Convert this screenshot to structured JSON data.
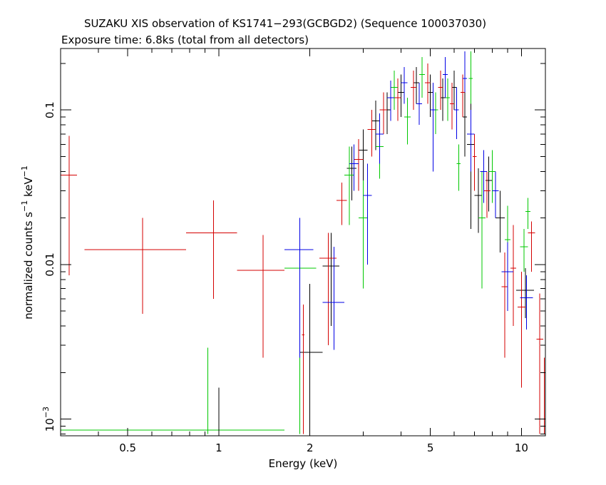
{
  "chart_data": {
    "type": "scatter",
    "title": "SUZAKU XIS observation of KS1741−293(GCBGD2) (Sequence 100037030)",
    "subtitle": "Exposure time: 6.8ks (total from all detectors)",
    "xlabel": "Energy (keV)",
    "ylabel_parts": {
      "base": "normalized counts s",
      "sup1": "−1",
      "mid": " keV",
      "sup2": "−1"
    },
    "xscale": "log",
    "yscale": "log",
    "xlim": [
      0.3,
      12.0
    ],
    "ylim": [
      0.00078,
      0.25
    ],
    "x_ticks": [
      {
        "value": 0.5,
        "label": "0.5"
      },
      {
        "value": 1,
        "label": "1"
      },
      {
        "value": 2,
        "label": "2"
      },
      {
        "value": 5,
        "label": "5"
      },
      {
        "value": 10,
        "label": "10"
      }
    ],
    "y_ticks": [
      {
        "value": 0.1,
        "label": "0.1"
      },
      {
        "value": 0.01,
        "label": "0.01"
      },
      {
        "value": 0.001,
        "label_base": "10",
        "label_sup": "−3"
      }
    ],
    "series": [
      {
        "color": "#000000",
        "points": [
          {
            "x": 2.0,
            "xerr": [
              1.85,
              2.2
            ],
            "y": 0.0027,
            "yerr": [
              0.0008,
              0.0075
            ]
          },
          {
            "x": 2.35,
            "xerr": [
              2.2,
              2.5
            ],
            "y": 0.0098,
            "yerr": [
              0.004,
              0.016
            ]
          },
          {
            "x": 2.75,
            "xerr": [
              2.65,
              2.85
            ],
            "y": 0.042,
            "yerr": [
              0.026,
              0.058
            ]
          },
          {
            "x": 3.0,
            "xerr": [
              2.9,
              3.1
            ],
            "y": 0.055,
            "yerr": [
              0.032,
              0.075
            ]
          },
          {
            "x": 3.3,
            "xerr": [
              3.2,
              3.4
            ],
            "y": 0.085,
            "yerr": [
              0.055,
              0.115
            ]
          },
          {
            "x": 3.6,
            "xerr": [
              3.5,
              3.7
            ],
            "y": 0.1,
            "yerr": [
              0.07,
              0.13
            ]
          },
          {
            "x": 4.0,
            "xerr": [
              3.9,
              4.1
            ],
            "y": 0.13,
            "yerr": [
              0.09,
              0.17
            ]
          },
          {
            "x": 4.5,
            "xerr": [
              4.4,
              4.6
            ],
            "y": 0.15,
            "yerr": [
              0.11,
              0.19
            ]
          },
          {
            "x": 5.0,
            "xerr": [
              4.9,
              5.1
            ],
            "y": 0.13,
            "yerr": [
              0.09,
              0.17
            ]
          },
          {
            "x": 5.5,
            "xerr": [
              5.4,
              5.6
            ],
            "y": 0.12,
            "yerr": [
              0.085,
              0.16
            ]
          },
          {
            "x": 6.0,
            "xerr": [
              5.9,
              6.1
            ],
            "y": 0.14,
            "yerr": [
              0.1,
              0.18
            ]
          },
          {
            "x": 6.5,
            "xerr": [
              6.4,
              6.6
            ],
            "y": 0.09,
            "yerr": [
              0.05,
              0.13
            ]
          },
          {
            "x": 7.2,
            "xerr": [
              7.0,
              7.4
            ],
            "y": 0.028,
            "yerr": [
              0.016,
              0.042
            ]
          },
          {
            "x": 8.5,
            "xerr": [
              8.2,
              8.8
            ],
            "y": 0.02,
            "yerr": [
              0.012,
              0.03
            ]
          },
          {
            "x": 10.3,
            "xerr": [
              9.6,
              11.0
            ],
            "y": 0.0068,
            "yerr": [
              0.0045,
              0.0095
            ]
          },
          {
            "x": 7.8,
            "xerr": [
              7.6,
              8.0
            ],
            "y": 0.035,
            "yerr": [
              0.022,
              0.05
            ]
          },
          {
            "x": 6.8,
            "xerr": [
              6.6,
              7.0
            ],
            "y": 0.06,
            "yerr": [
              0.017,
              0.11
            ]
          },
          {
            "x": 1.0,
            "xerr": [
              0.99,
              1.01
            ],
            "y": 0.00085,
            "yerr": [
              0.0008,
              0.0016
            ]
          }
        ]
      },
      {
        "color": "#d40000",
        "points": [
          {
            "x": 0.32,
            "xerr": [
              0.3,
              0.34
            ],
            "y": 0.038,
            "yerr": [
              0.0085,
              0.068
            ]
          },
          {
            "x": 0.56,
            "xerr": [
              0.36,
              0.78
            ],
            "y": 0.0125,
            "yerr": [
              0.0048,
              0.02
            ]
          },
          {
            "x": 0.96,
            "xerr": [
              0.78,
              1.15
            ],
            "y": 0.016,
            "yerr": [
              0.006,
              0.026
            ]
          },
          {
            "x": 1.4,
            "xerr": [
              1.15,
              1.65
            ],
            "y": 0.0092,
            "yerr": [
              0.0025,
              0.0155
            ]
          },
          {
            "x": 1.9,
            "xerr": [
              1.88,
              1.92
            ],
            "y": 0.0035,
            "yerr": [
              0.0008,
              0.0055
            ]
          },
          {
            "x": 2.3,
            "xerr": [
              2.15,
              2.45
            ],
            "y": 0.011,
            "yerr": [
              0.003,
              0.016
            ]
          },
          {
            "x": 2.55,
            "xerr": [
              2.45,
              2.65
            ],
            "y": 0.026,
            "yerr": [
              0.018,
              0.034
            ]
          },
          {
            "x": 2.9,
            "xerr": [
              2.8,
              3.0
            ],
            "y": 0.048,
            "yerr": [
              0.03,
              0.065
            ]
          },
          {
            "x": 3.2,
            "xerr": [
              3.1,
              3.3
            ],
            "y": 0.075,
            "yerr": [
              0.05,
              0.1
            ]
          },
          {
            "x": 3.5,
            "xerr": [
              3.4,
              3.6
            ],
            "y": 0.1,
            "yerr": [
              0.07,
              0.13
            ]
          },
          {
            "x": 3.9,
            "xerr": [
              3.8,
              4.0
            ],
            "y": 0.12,
            "yerr": [
              0.085,
              0.16
            ]
          },
          {
            "x": 4.4,
            "xerr": [
              4.3,
              4.5
            ],
            "y": 0.14,
            "yerr": [
              0.1,
              0.18
            ]
          },
          {
            "x": 4.9,
            "xerr": [
              4.8,
              5.0
            ],
            "y": 0.15,
            "yerr": [
              0.11,
              0.2
            ]
          },
          {
            "x": 5.4,
            "xerr": [
              5.3,
              5.5
            ],
            "y": 0.14,
            "yerr": [
              0.1,
              0.18
            ]
          },
          {
            "x": 5.9,
            "xerr": [
              5.8,
              6.0
            ],
            "y": 0.11,
            "yerr": [
              0.075,
              0.15
            ]
          },
          {
            "x": 6.4,
            "xerr": [
              6.3,
              6.5
            ],
            "y": 0.13,
            "yerr": [
              0.09,
              0.17
            ]
          },
          {
            "x": 7.0,
            "xerr": [
              6.9,
              7.1
            ],
            "y": 0.05,
            "yerr": [
              0.03,
              0.07
            ]
          },
          {
            "x": 7.7,
            "xerr": [
              7.5,
              7.9
            ],
            "y": 0.03,
            "yerr": [
              0.02,
              0.04
            ]
          },
          {
            "x": 8.8,
            "xerr": [
              8.6,
              9.0
            ],
            "y": 0.0072,
            "yerr": [
              0.0025,
              0.012
            ]
          },
          {
            "x": 9.4,
            "xerr": [
              9.2,
              9.6
            ],
            "y": 0.0095,
            "yerr": [
              0.004,
              0.018
            ]
          },
          {
            "x": 10.0,
            "xerr": [
              9.7,
              10.3
            ],
            "y": 0.0053,
            "yerr": [
              0.0016,
              0.009
            ]
          },
          {
            "x": 10.8,
            "xerr": [
              10.5,
              11.1
            ],
            "y": 0.016,
            "yerr": [
              0.009,
              0.019
            ]
          },
          {
            "x": 11.5,
            "xerr": [
              11.2,
              11.8
            ],
            "y": 0.0033,
            "yerr": [
              0.0008,
              0.0065
            ]
          },
          {
            "x": 11.9,
            "xerr": [
              11.7,
              12.0
            ],
            "y": 0.001,
            "yerr": [
              0.0008,
              0.0025
            ]
          }
        ]
      },
      {
        "color": "#00c800",
        "points": [
          {
            "x": 0.92,
            "xerr": [
              0.3,
              1.65
            ],
            "y": 0.00085,
            "yerr": [
              0.0008,
              0.0029
            ]
          },
          {
            "x": 1.85,
            "xerr": [
              1.65,
              2.1
            ],
            "y": 0.0095,
            "yerr": [
              0.0008,
              0.018
            ]
          },
          {
            "x": 2.7,
            "xerr": [
              2.6,
              2.8
            ],
            "y": 0.038,
            "yerr": [
              0.018,
              0.058
            ]
          },
          {
            "x": 3.0,
            "xerr": [
              2.9,
              3.1
            ],
            "y": 0.02,
            "yerr": [
              0.007,
              0.035
            ]
          },
          {
            "x": 3.4,
            "xerr": [
              3.3,
              3.5
            ],
            "y": 0.058,
            "yerr": [
              0.036,
              0.08
            ]
          },
          {
            "x": 3.8,
            "xerr": [
              3.7,
              3.9
            ],
            "y": 0.14,
            "yerr": [
              0.1,
              0.18
            ]
          },
          {
            "x": 4.2,
            "xerr": [
              4.1,
              4.3
            ],
            "y": 0.09,
            "yerr": [
              0.06,
              0.12
            ]
          },
          {
            "x": 4.7,
            "xerr": [
              4.6,
              4.8
            ],
            "y": 0.17,
            "yerr": [
              0.12,
              0.22
            ]
          },
          {
            "x": 5.2,
            "xerr": [
              5.1,
              5.3
            ],
            "y": 0.1,
            "yerr": [
              0.07,
              0.13
            ]
          },
          {
            "x": 5.7,
            "xerr": [
              5.6,
              5.8
            ],
            "y": 0.12,
            "yerr": [
              0.085,
              0.16
            ]
          },
          {
            "x": 6.2,
            "xerr": [
              6.1,
              6.3
            ],
            "y": 0.045,
            "yerr": [
              0.03,
              0.06
            ]
          },
          {
            "x": 6.8,
            "xerr": [
              6.7,
              6.9
            ],
            "y": 0.16,
            "yerr": [
              0.11,
              0.24
            ]
          },
          {
            "x": 7.4,
            "xerr": [
              7.2,
              7.6
            ],
            "y": 0.02,
            "yerr": [
              0.007,
              0.04
            ]
          },
          {
            "x": 8.0,
            "xerr": [
              7.8,
              8.2
            ],
            "y": 0.04,
            "yerr": [
              0.025,
              0.055
            ]
          },
          {
            "x": 9.0,
            "xerr": [
              8.8,
              9.2
            ],
            "y": 0.0145,
            "yerr": [
              0.006,
              0.024
            ]
          },
          {
            "x": 10.2,
            "xerr": [
              9.9,
              10.5
            ],
            "y": 0.013,
            "yerr": [
              0.009,
              0.017
            ]
          },
          {
            "x": 10.5,
            "xerr": [
              10.3,
              10.7
            ],
            "y": 0.022,
            "yerr": [
              0.017,
              0.027
            ]
          }
        ]
      },
      {
        "color": "#0000e6",
        "points": [
          {
            "x": 1.85,
            "xerr": [
              1.65,
              2.05
            ],
            "y": 0.0125,
            "yerr": [
              0.0025,
              0.02
            ]
          },
          {
            "x": 2.4,
            "xerr": [
              2.2,
              2.6
            ],
            "y": 0.0057,
            "yerr": [
              0.0028,
              0.013
            ]
          },
          {
            "x": 2.8,
            "xerr": [
              2.7,
              2.9
            ],
            "y": 0.045,
            "yerr": [
              0.03,
              0.06
            ]
          },
          {
            "x": 3.1,
            "xerr": [
              3.0,
              3.2
            ],
            "y": 0.028,
            "yerr": [
              0.01,
              0.045
            ]
          },
          {
            "x": 3.4,
            "xerr": [
              3.3,
              3.5
            ],
            "y": 0.07,
            "yerr": [
              0.045,
              0.095
            ]
          },
          {
            "x": 3.7,
            "xerr": [
              3.6,
              3.8
            ],
            "y": 0.12,
            "yerr": [
              0.085,
              0.155
            ]
          },
          {
            "x": 4.1,
            "xerr": [
              4.0,
              4.2
            ],
            "y": 0.15,
            "yerr": [
              0.11,
              0.19
            ]
          },
          {
            "x": 4.6,
            "xerr": [
              4.5,
              4.7
            ],
            "y": 0.11,
            "yerr": [
              0.08,
              0.15
            ]
          },
          {
            "x": 5.1,
            "xerr": [
              5.0,
              5.2
            ],
            "y": 0.1,
            "yerr": [
              0.04,
              0.15
            ]
          },
          {
            "x": 5.6,
            "xerr": [
              5.5,
              5.7
            ],
            "y": 0.17,
            "yerr": [
              0.12,
              0.22
            ]
          },
          {
            "x": 6.1,
            "xerr": [
              6.0,
              6.2
            ],
            "y": 0.1,
            "yerr": [
              0.065,
              0.14
            ]
          },
          {
            "x": 6.8,
            "xerr": [
              6.6,
              7.0
            ],
            "y": 0.07,
            "yerr": [
              0.04,
              0.1
            ]
          },
          {
            "x": 7.5,
            "xerr": [
              7.3,
              7.7
            ],
            "y": 0.04,
            "yerr": [
              0.025,
              0.055
            ]
          },
          {
            "x": 8.2,
            "xerr": [
              8.0,
              8.4
            ],
            "y": 0.03,
            "yerr": [
              0.02,
              0.04
            ]
          },
          {
            "x": 9.0,
            "xerr": [
              8.6,
              9.4
            ],
            "y": 0.009,
            "yerr": [
              0.005,
              0.014
            ]
          },
          {
            "x": 10.4,
            "xerr": [
              9.9,
              10.9
            ],
            "y": 0.0061,
            "yerr": [
              0.0038,
              0.0085
            ]
          },
          {
            "x": 6.5,
            "xerr": [
              6.4,
              6.6
            ],
            "y": 0.16,
            "yerr": [
              0.13,
              0.24
            ]
          }
        ]
      }
    ]
  }
}
